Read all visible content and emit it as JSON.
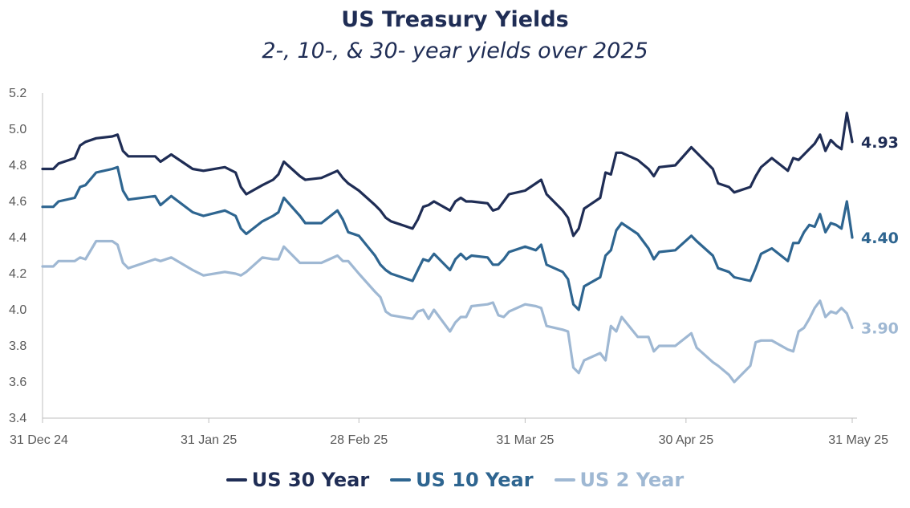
{
  "chart_data": {
    "type": "line",
    "title": "US Treasury Yields",
    "subtitle": "2-, 10-, & 30- year yields over 2025",
    "x_tick_labels": [
      "31 Dec 24",
      "31 Jan 25",
      "28 Feb 25",
      "31 Mar 25",
      "30 Apr 25",
      "31 May 25"
    ],
    "y_ticks": [
      "3.4",
      "3.6",
      "3.8",
      "4.0",
      "4.2",
      "4.4",
      "4.6",
      "4.8",
      "5.0",
      "5.2"
    ],
    "ylim": [
      3.4,
      5.2
    ],
    "xlim": [
      "2024-12-31",
      "2025-05-31"
    ],
    "grid": false,
    "legend_position": "bottom",
    "series": [
      {
        "name": "US 30 Year",
        "color": "#1f2d55",
        "end_label": "4.93",
        "points": [
          [
            "2024-12-31",
            4.78
          ],
          [
            "2025-01-02",
            4.78
          ],
          [
            "2025-01-03",
            4.81
          ],
          [
            "2025-01-06",
            4.84
          ],
          [
            "2025-01-07",
            4.91
          ],
          [
            "2025-01-08",
            4.93
          ],
          [
            "2025-01-10",
            4.95
          ],
          [
            "2025-01-13",
            4.96
          ],
          [
            "2025-01-14",
            4.97
          ],
          [
            "2025-01-15",
            4.88
          ],
          [
            "2025-01-16",
            4.85
          ],
          [
            "2025-01-21",
            4.85
          ],
          [
            "2025-01-22",
            4.82
          ],
          [
            "2025-01-24",
            4.86
          ],
          [
            "2025-01-28",
            4.78
          ],
          [
            "2025-01-30",
            4.77
          ],
          [
            "2025-02-03",
            4.79
          ],
          [
            "2025-02-05",
            4.76
          ],
          [
            "2025-02-06",
            4.68
          ],
          [
            "2025-02-07",
            4.64
          ],
          [
            "2025-02-10",
            4.69
          ],
          [
            "2025-02-12",
            4.72
          ],
          [
            "2025-02-13",
            4.75
          ],
          [
            "2025-02-14",
            4.82
          ],
          [
            "2025-02-17",
            4.74
          ],
          [
            "2025-02-18",
            4.72
          ],
          [
            "2025-02-21",
            4.73
          ],
          [
            "2025-02-24",
            4.77
          ],
          [
            "2025-02-25",
            4.73
          ],
          [
            "2025-02-26",
            4.7
          ],
          [
            "2025-02-28",
            4.66
          ],
          [
            "2025-03-03",
            4.58
          ],
          [
            "2025-03-04",
            4.55
          ],
          [
            "2025-03-05",
            4.51
          ],
          [
            "2025-03-06",
            4.49
          ],
          [
            "2025-03-10",
            4.45
          ],
          [
            "2025-03-11",
            4.5
          ],
          [
            "2025-03-12",
            4.57
          ],
          [
            "2025-03-13",
            4.58
          ],
          [
            "2025-03-14",
            4.6
          ],
          [
            "2025-03-17",
            4.55
          ],
          [
            "2025-03-18",
            4.6
          ],
          [
            "2025-03-19",
            4.62
          ],
          [
            "2025-03-20",
            4.6
          ],
          [
            "2025-03-21",
            4.6
          ],
          [
            "2025-03-24",
            4.59
          ],
          [
            "2025-03-25",
            4.55
          ],
          [
            "2025-03-26",
            4.56
          ],
          [
            "2025-03-27",
            4.6
          ],
          [
            "2025-03-28",
            4.64
          ],
          [
            "2025-03-31",
            4.66
          ],
          [
            "2025-04-02",
            4.7
          ],
          [
            "2025-04-03",
            4.72
          ],
          [
            "2025-04-04",
            4.64
          ],
          [
            "2025-04-07",
            4.55
          ],
          [
            "2025-04-08",
            4.51
          ],
          [
            "2025-04-09",
            4.41
          ],
          [
            "2025-04-10",
            4.45
          ],
          [
            "2025-04-11",
            4.56
          ],
          [
            "2025-04-14",
            4.62
          ],
          [
            "2025-04-15",
            4.76
          ],
          [
            "2025-04-16",
            4.75
          ],
          [
            "2025-04-17",
            4.87
          ],
          [
            "2025-04-18",
            4.87
          ],
          [
            "2025-04-21",
            4.83
          ],
          [
            "2025-04-23",
            4.78
          ],
          [
            "2025-04-24",
            4.74
          ],
          [
            "2025-04-25",
            4.79
          ],
          [
            "2025-04-28",
            4.8
          ],
          [
            "2025-05-01",
            4.9
          ],
          [
            "2025-05-02",
            4.87
          ],
          [
            "2025-05-05",
            4.78
          ],
          [
            "2025-05-06",
            4.7
          ],
          [
            "2025-05-08",
            4.68
          ],
          [
            "2025-05-09",
            4.65
          ],
          [
            "2025-05-12",
            4.68
          ],
          [
            "2025-05-13",
            4.74
          ],
          [
            "2025-05-14",
            4.79
          ],
          [
            "2025-05-16",
            4.84
          ],
          [
            "2025-05-19",
            4.77
          ],
          [
            "2025-05-20",
            4.84
          ],
          [
            "2025-05-21",
            4.83
          ],
          [
            "2025-05-22",
            4.86
          ],
          [
            "2025-05-23",
            4.89
          ],
          [
            "2025-05-24",
            4.92
          ],
          [
            "2025-05-25",
            4.97
          ],
          [
            "2025-05-26",
            4.88
          ],
          [
            "2025-05-27",
            4.94
          ],
          [
            "2025-05-28",
            4.91
          ],
          [
            "2025-05-29",
            4.89
          ],
          [
            "2025-05-30",
            5.09
          ],
          [
            "2025-05-31",
            4.93
          ]
        ]
      },
      {
        "name": "US 10 Year",
        "color": "#2e6590",
        "end_label": "4.40",
        "points": [
          [
            "2024-12-31",
            4.57
          ],
          [
            "2025-01-02",
            4.57
          ],
          [
            "2025-01-03",
            4.6
          ],
          [
            "2025-01-06",
            4.62
          ],
          [
            "2025-01-07",
            4.68
          ],
          [
            "2025-01-08",
            4.69
          ],
          [
            "2025-01-10",
            4.76
          ],
          [
            "2025-01-13",
            4.78
          ],
          [
            "2025-01-14",
            4.79
          ],
          [
            "2025-01-15",
            4.66
          ],
          [
            "2025-01-16",
            4.61
          ],
          [
            "2025-01-21",
            4.63
          ],
          [
            "2025-01-22",
            4.58
          ],
          [
            "2025-01-24",
            4.63
          ],
          [
            "2025-01-28",
            4.54
          ],
          [
            "2025-01-30",
            4.52
          ],
          [
            "2025-02-03",
            4.55
          ],
          [
            "2025-02-05",
            4.52
          ],
          [
            "2025-02-06",
            4.45
          ],
          [
            "2025-02-07",
            4.42
          ],
          [
            "2025-02-10",
            4.49
          ],
          [
            "2025-02-12",
            4.52
          ],
          [
            "2025-02-13",
            4.54
          ],
          [
            "2025-02-14",
            4.62
          ],
          [
            "2025-02-17",
            4.52
          ],
          [
            "2025-02-18",
            4.48
          ],
          [
            "2025-02-21",
            4.48
          ],
          [
            "2025-02-24",
            4.55
          ],
          [
            "2025-02-25",
            4.5
          ],
          [
            "2025-02-26",
            4.43
          ],
          [
            "2025-02-28",
            4.41
          ],
          [
            "2025-03-03",
            4.3
          ],
          [
            "2025-03-04",
            4.25
          ],
          [
            "2025-03-05",
            4.22
          ],
          [
            "2025-03-06",
            4.2
          ],
          [
            "2025-03-10",
            4.16
          ],
          [
            "2025-03-11",
            4.22
          ],
          [
            "2025-03-12",
            4.28
          ],
          [
            "2025-03-13",
            4.27
          ],
          [
            "2025-03-14",
            4.31
          ],
          [
            "2025-03-17",
            4.22
          ],
          [
            "2025-03-18",
            4.28
          ],
          [
            "2025-03-19",
            4.31
          ],
          [
            "2025-03-20",
            4.28
          ],
          [
            "2025-03-21",
            4.3
          ],
          [
            "2025-03-24",
            4.29
          ],
          [
            "2025-03-25",
            4.25
          ],
          [
            "2025-03-26",
            4.25
          ],
          [
            "2025-03-27",
            4.28
          ],
          [
            "2025-03-28",
            4.32
          ],
          [
            "2025-03-31",
            4.35
          ],
          [
            "2025-04-02",
            4.33
          ],
          [
            "2025-04-03",
            4.36
          ],
          [
            "2025-04-04",
            4.25
          ],
          [
            "2025-04-07",
            4.21
          ],
          [
            "2025-04-08",
            4.17
          ],
          [
            "2025-04-09",
            4.03
          ],
          [
            "2025-04-10",
            4.0
          ],
          [
            "2025-04-11",
            4.13
          ],
          [
            "2025-04-14",
            4.18
          ],
          [
            "2025-04-15",
            4.3
          ],
          [
            "2025-04-16",
            4.33
          ],
          [
            "2025-04-17",
            4.44
          ],
          [
            "2025-04-18",
            4.48
          ],
          [
            "2025-04-21",
            4.42
          ],
          [
            "2025-04-23",
            4.34
          ],
          [
            "2025-04-24",
            4.28
          ],
          [
            "2025-04-25",
            4.32
          ],
          [
            "2025-04-28",
            4.33
          ],
          [
            "2025-05-01",
            4.41
          ],
          [
            "2025-05-02",
            4.38
          ],
          [
            "2025-05-05",
            4.3
          ],
          [
            "2025-05-06",
            4.23
          ],
          [
            "2025-05-08",
            4.21
          ],
          [
            "2025-05-09",
            4.18
          ],
          [
            "2025-05-12",
            4.16
          ],
          [
            "2025-05-13",
            4.23
          ],
          [
            "2025-05-14",
            4.31
          ],
          [
            "2025-05-16",
            4.34
          ],
          [
            "2025-05-19",
            4.27
          ],
          [
            "2025-05-20",
            4.37
          ],
          [
            "2025-05-21",
            4.37
          ],
          [
            "2025-05-22",
            4.43
          ],
          [
            "2025-05-23",
            4.47
          ],
          [
            "2025-05-24",
            4.46
          ],
          [
            "2025-05-25",
            4.53
          ],
          [
            "2025-05-26",
            4.43
          ],
          [
            "2025-05-27",
            4.48
          ],
          [
            "2025-05-28",
            4.47
          ],
          [
            "2025-05-29",
            4.45
          ],
          [
            "2025-05-30",
            4.6
          ],
          [
            "2025-05-31",
            4.4
          ]
        ]
      },
      {
        "name": "US 2 Year",
        "color": "#9fb8d3",
        "end_label": "3.90",
        "points": [
          [
            "2024-12-31",
            4.24
          ],
          [
            "2025-01-02",
            4.24
          ],
          [
            "2025-01-03",
            4.27
          ],
          [
            "2025-01-06",
            4.27
          ],
          [
            "2025-01-07",
            4.29
          ],
          [
            "2025-01-08",
            4.28
          ],
          [
            "2025-01-10",
            4.38
          ],
          [
            "2025-01-13",
            4.38
          ],
          [
            "2025-01-14",
            4.36
          ],
          [
            "2025-01-15",
            4.26
          ],
          [
            "2025-01-16",
            4.23
          ],
          [
            "2025-01-21",
            4.28
          ],
          [
            "2025-01-22",
            4.27
          ],
          [
            "2025-01-24",
            4.29
          ],
          [
            "2025-01-28",
            4.22
          ],
          [
            "2025-01-30",
            4.19
          ],
          [
            "2025-02-03",
            4.21
          ],
          [
            "2025-02-05",
            4.2
          ],
          [
            "2025-02-06",
            4.19
          ],
          [
            "2025-02-07",
            4.21
          ],
          [
            "2025-02-10",
            4.29
          ],
          [
            "2025-02-12",
            4.28
          ],
          [
            "2025-02-13",
            4.28
          ],
          [
            "2025-02-14",
            4.35
          ],
          [
            "2025-02-17",
            4.26
          ],
          [
            "2025-02-18",
            4.26
          ],
          [
            "2025-02-21",
            4.26
          ],
          [
            "2025-02-24",
            4.3
          ],
          [
            "2025-02-25",
            4.27
          ],
          [
            "2025-02-26",
            4.27
          ],
          [
            "2025-02-28",
            4.2
          ],
          [
            "2025-03-03",
            4.1
          ],
          [
            "2025-03-04",
            4.07
          ],
          [
            "2025-03-05",
            3.99
          ],
          [
            "2025-03-06",
            3.97
          ],
          [
            "2025-03-10",
            3.95
          ],
          [
            "2025-03-11",
            3.99
          ],
          [
            "2025-03-12",
            4.0
          ],
          [
            "2025-03-13",
            3.95
          ],
          [
            "2025-03-14",
            4.0
          ],
          [
            "2025-03-17",
            3.88
          ],
          [
            "2025-03-18",
            3.93
          ],
          [
            "2025-03-19",
            3.96
          ],
          [
            "2025-03-20",
            3.96
          ],
          [
            "2025-03-21",
            4.02
          ],
          [
            "2025-03-24",
            4.03
          ],
          [
            "2025-03-25",
            4.04
          ],
          [
            "2025-03-26",
            3.97
          ],
          [
            "2025-03-27",
            3.96
          ],
          [
            "2025-03-28",
            3.99
          ],
          [
            "2025-03-31",
            4.03
          ],
          [
            "2025-04-02",
            4.02
          ],
          [
            "2025-04-03",
            4.01
          ],
          [
            "2025-04-04",
            3.91
          ],
          [
            "2025-04-07",
            3.89
          ],
          [
            "2025-04-08",
            3.88
          ],
          [
            "2025-04-09",
            3.68
          ],
          [
            "2025-04-10",
            3.65
          ],
          [
            "2025-04-11",
            3.72
          ],
          [
            "2025-04-14",
            3.76
          ],
          [
            "2025-04-15",
            3.72
          ],
          [
            "2025-04-16",
            3.91
          ],
          [
            "2025-04-17",
            3.88
          ],
          [
            "2025-04-18",
            3.96
          ],
          [
            "2025-04-21",
            3.85
          ],
          [
            "2025-04-23",
            3.85
          ],
          [
            "2025-04-24",
            3.77
          ],
          [
            "2025-04-25",
            3.8
          ],
          [
            "2025-04-28",
            3.8
          ],
          [
            "2025-05-01",
            3.87
          ],
          [
            "2025-05-02",
            3.79
          ],
          [
            "2025-05-05",
            3.71
          ],
          [
            "2025-05-06",
            3.69
          ],
          [
            "2025-05-08",
            3.64
          ],
          [
            "2025-05-09",
            3.6
          ],
          [
            "2025-05-12",
            3.69
          ],
          [
            "2025-05-13",
            3.82
          ],
          [
            "2025-05-14",
            3.83
          ],
          [
            "2025-05-16",
            3.83
          ],
          [
            "2025-05-19",
            3.78
          ],
          [
            "2025-05-20",
            3.77
          ],
          [
            "2025-05-21",
            3.88
          ],
          [
            "2025-05-22",
            3.9
          ],
          [
            "2025-05-23",
            3.95
          ],
          [
            "2025-05-24",
            4.01
          ],
          [
            "2025-05-25",
            4.05
          ],
          [
            "2025-05-26",
            3.96
          ],
          [
            "2025-05-27",
            3.99
          ],
          [
            "2025-05-28",
            3.98
          ],
          [
            "2025-05-29",
            4.01
          ],
          [
            "2025-05-30",
            3.98
          ],
          [
            "2025-05-31",
            3.9
          ]
        ]
      }
    ]
  }
}
